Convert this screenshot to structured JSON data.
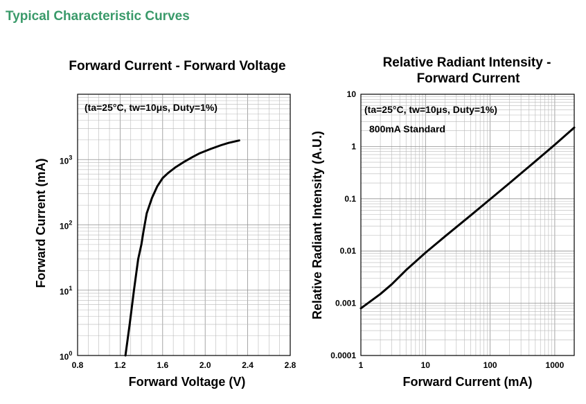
{
  "section_title": "Typical Characteristic Curves",
  "chart_data": [
    {
      "type": "line",
      "title": "Forward Current - Forward Voltage",
      "xlabel": "Forward Voltage (V)",
      "ylabel": "Forward Current (mA)",
      "annotation": "(ta=25°C, tw=10μs, Duty=1%)",
      "x_scale": "linear",
      "y_scale": "log",
      "xlim": [
        0.8,
        2.8
      ],
      "ylim": [
        1,
        10000
      ],
      "x_ticks": [
        "0.8",
        "1.2",
        "1.6",
        "2.0",
        "2.4",
        "2.8"
      ],
      "y_ticks": [
        {
          "base": "10",
          "exp": "0"
        },
        {
          "base": "10",
          "exp": "1"
        },
        {
          "base": "10",
          "exp": "2"
        },
        {
          "base": "10",
          "exp": "3"
        }
      ],
      "grid": true,
      "series": [
        {
          "x": [
            1.25,
            1.29,
            1.33,
            1.37,
            1.4,
            1.42,
            1.45,
            1.5,
            1.55,
            1.6,
            1.65,
            1.72,
            1.8,
            1.88,
            1.95,
            2.05,
            2.15,
            2.22,
            2.32
          ],
          "y": [
            1,
            3,
            10,
            30,
            50,
            80,
            150,
            260,
            390,
            520,
            620,
            760,
            920,
            1090,
            1250,
            1450,
            1660,
            1800,
            1960
          ]
        }
      ]
    },
    {
      "type": "line",
      "title": "Relative Radiant Intensity - Forward Current",
      "title_lines": [
        "Relative Radiant Intensity -",
        "Forward Current"
      ],
      "xlabel": "Forward Current (mA)",
      "ylabel": "Relative Radiant Intensity (A.U.)",
      "annotations": [
        "(ta=25°C, tw=10μs, Duty=1%)",
        "800mA Standard"
      ],
      "x_scale": "log",
      "y_scale": "log",
      "xlim": [
        1,
        2000
      ],
      "ylim": [
        0.0001,
        10
      ],
      "x_ticks": [
        "1",
        "10",
        "100",
        "1000"
      ],
      "y_ticks": [
        "0.0001",
        "0.001",
        "0.01",
        "0.1",
        "1",
        "10"
      ],
      "grid": true,
      "series": [
        {
          "x": [
            1,
            2,
            3,
            5,
            10,
            20,
            50,
            100,
            200,
            500,
            1000,
            2000
          ],
          "y": [
            0.0008,
            0.0015,
            0.0023,
            0.0043,
            0.0093,
            0.019,
            0.048,
            0.098,
            0.2,
            0.52,
            1.08,
            2.3
          ]
        }
      ]
    }
  ]
}
